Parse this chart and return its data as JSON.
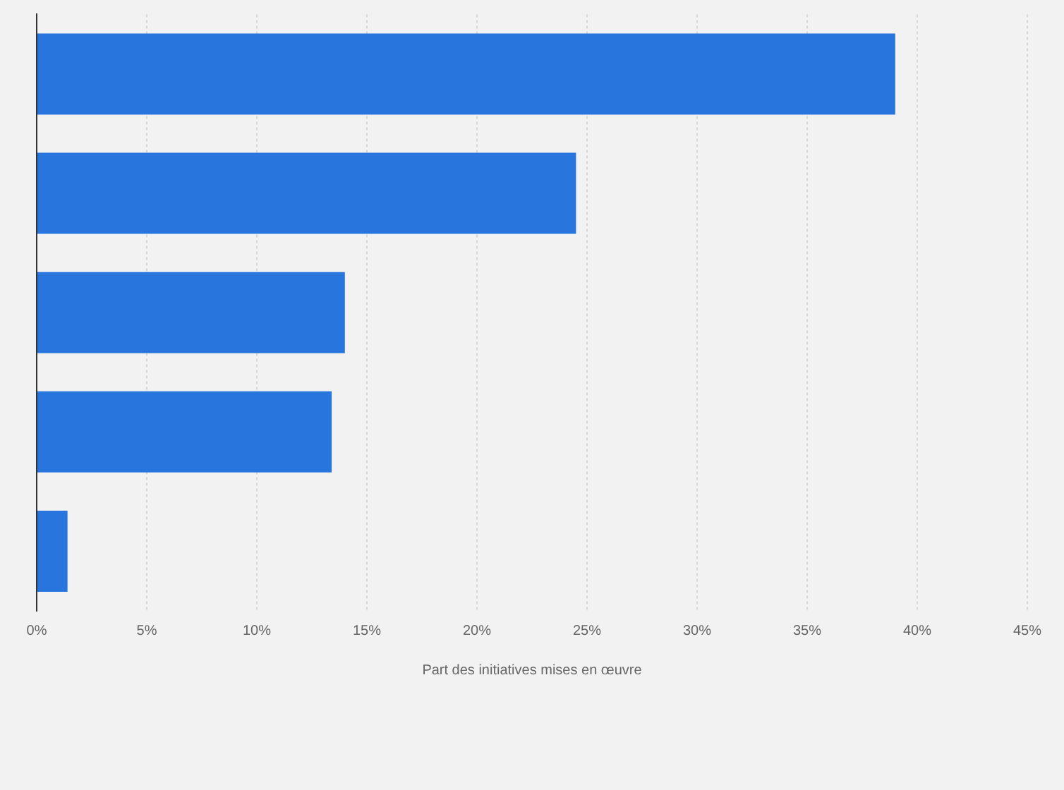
{
  "chart_data": {
    "type": "bar",
    "orientation": "horizontal",
    "xlabel": "Part des initiatives mises en œuvre",
    "categories": [
      null,
      null,
      null,
      null,
      null
    ],
    "values": [
      39,
      24.5,
      14,
      13.4,
      1.4
    ],
    "color": "#2876dd",
    "xlim": [
      0,
      45
    ],
    "xticks": [
      {
        "value": 0,
        "label": "0%"
      },
      {
        "value": 5,
        "label": "5%"
      },
      {
        "value": 10,
        "label": "10%"
      },
      {
        "value": 15,
        "label": "15%"
      },
      {
        "value": 20,
        "label": "20%"
      },
      {
        "value": 25,
        "label": "25%"
      },
      {
        "value": 30,
        "label": "30%"
      },
      {
        "value": 35,
        "label": "35%"
      },
      {
        "value": 40,
        "label": "40%"
      },
      {
        "value": 45,
        "label": "45%"
      }
    ],
    "grid": "x",
    "legend": false
  }
}
